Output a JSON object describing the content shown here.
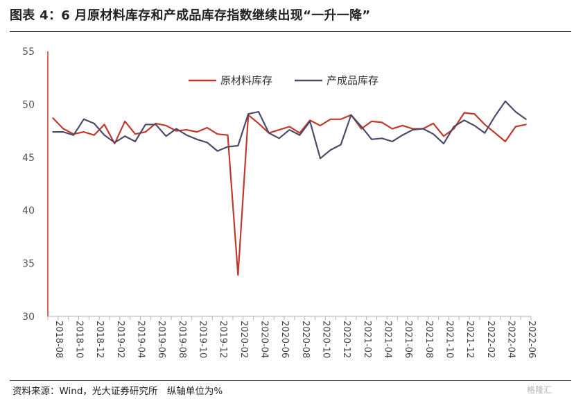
{
  "header": {
    "title": "图表 4：6 月原材料库存和产成品库存指数继续出现“一升一降”"
  },
  "footer": {
    "source": "资料来源：Wind，光大证券研究所　纵轴单位为%",
    "watermark": "格隆汇"
  },
  "chart_data": {
    "type": "line",
    "title": "",
    "xlabel": "",
    "ylabel": "",
    "ylim": [
      30,
      55
    ],
    "yticks": [
      30,
      35,
      40,
      45,
      50,
      55
    ],
    "grid": false,
    "legend_position": "top-center",
    "x": [
      "2018-08",
      "2018-09",
      "2018-10",
      "2018-11",
      "2018-12",
      "2019-01",
      "2019-02",
      "2019-03",
      "2019-04",
      "2019-05",
      "2019-06",
      "2019-07",
      "2019-08",
      "2019-09",
      "2019-10",
      "2019-11",
      "2019-12",
      "2020-01",
      "2020-02",
      "2020-03",
      "2020-04",
      "2020-05",
      "2020-06",
      "2020-07",
      "2020-08",
      "2020-09",
      "2020-10",
      "2020-11",
      "2020-12",
      "2021-01",
      "2021-02",
      "2021-03",
      "2021-04",
      "2021-05",
      "2021-06",
      "2021-07",
      "2021-08",
      "2021-09",
      "2021-10",
      "2021-11",
      "2021-12",
      "2022-01",
      "2022-02",
      "2022-03",
      "2022-04",
      "2022-05",
      "2022-06"
    ],
    "x_tick_labels": [
      "2018-08",
      "2018-10",
      "2018-12",
      "2019-02",
      "2019-04",
      "2019-06",
      "2019-08",
      "2019-10",
      "2019-12",
      "2020-02",
      "2020-04",
      "2020-06",
      "2020-08",
      "2020-10",
      "2020-12",
      "2021-02",
      "2021-04",
      "2021-06",
      "2021-08",
      "2021-10",
      "2021-12",
      "2022-02",
      "2022-04",
      "2022-06"
    ],
    "series": [
      {
        "name": "原材料库存",
        "color": "#c0392b",
        "values": [
          48.7,
          47.7,
          47.2,
          47.4,
          47.1,
          48.1,
          46.3,
          48.4,
          47.2,
          47.4,
          48.2,
          48.0,
          47.5,
          47.6,
          47.4,
          47.8,
          47.2,
          47.1,
          33.9,
          49.0,
          48.2,
          47.3,
          47.6,
          47.9,
          47.3,
          48.5,
          48.0,
          48.6,
          48.6,
          49.0,
          47.7,
          48.4,
          48.3,
          47.7,
          48.0,
          47.7,
          47.7,
          48.2,
          47.0,
          47.7,
          49.2,
          49.1,
          48.1,
          47.3,
          46.5,
          47.9,
          48.1
        ]
      },
      {
        "name": "产成品库存",
        "color": "#4a4a6a",
        "values": [
          47.4,
          47.4,
          47.1,
          48.6,
          48.2,
          47.1,
          46.4,
          47.0,
          46.5,
          48.1,
          48.1,
          47.0,
          47.7,
          47.1,
          46.7,
          46.4,
          45.6,
          46.0,
          46.1,
          49.1,
          49.3,
          47.3,
          46.8,
          47.6,
          47.1,
          48.4,
          44.9,
          45.7,
          46.2,
          49.0,
          47.9,
          46.7,
          46.8,
          46.5,
          47.1,
          47.6,
          47.7,
          47.2,
          46.3,
          47.9,
          48.5,
          48.0,
          47.3,
          48.9,
          50.3,
          49.3,
          48.6
        ]
      }
    ]
  }
}
